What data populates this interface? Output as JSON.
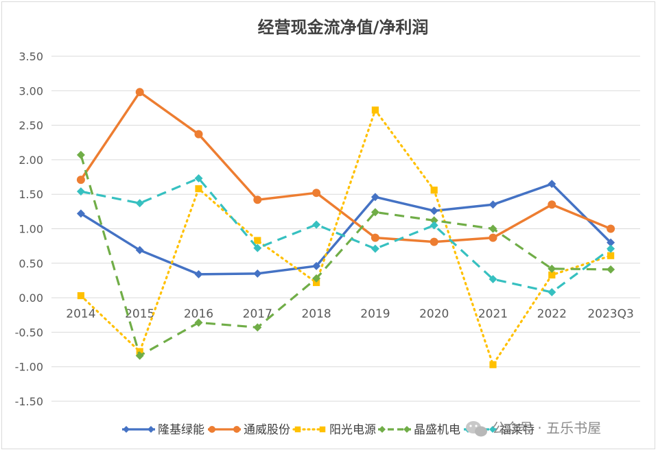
{
  "chart_data": {
    "type": "line",
    "title": "经营现金流净值/净利润",
    "categories": [
      "2014",
      "2015",
      "2016",
      "2017",
      "2018",
      "2019",
      "2020",
      "2021",
      "2022",
      "2023Q3"
    ],
    "ylim": [
      -1.5,
      3.5
    ],
    "yticks": [
      "3.50",
      "3.00",
      "2.50",
      "2.00",
      "1.50",
      "1.00",
      "0.50",
      "0.00",
      "-0.50",
      "-1.00",
      "-1.50"
    ],
    "series": [
      {
        "name": "隆基绿能",
        "color": "#4472c4",
        "dash": "solid",
        "marker": "diamond",
        "values": [
          1.22,
          0.69,
          0.34,
          0.35,
          0.46,
          1.46,
          1.26,
          1.35,
          1.65,
          0.8
        ]
      },
      {
        "name": "通威股份",
        "color": "#ed7d31",
        "dash": "solid",
        "marker": "circle",
        "values": [
          1.71,
          2.98,
          2.37,
          1.42,
          1.52,
          0.87,
          0.81,
          0.87,
          1.35,
          1.0
        ]
      },
      {
        "name": "阳光电源",
        "color": "#ffc000",
        "dash": "dotted",
        "marker": "square",
        "values": [
          0.03,
          -0.78,
          1.58,
          0.83,
          0.22,
          2.72,
          1.56,
          -0.97,
          0.33,
          0.61
        ]
      },
      {
        "name": "晶盛机电",
        "color": "#70ad47",
        "dash": "dashed",
        "marker": "diamond",
        "values": [
          2.07,
          -0.84,
          -0.36,
          -0.43,
          0.28,
          1.24,
          1.12,
          1.0,
          0.42,
          0.41
        ]
      },
      {
        "name": "福莱特",
        "color": "#36c0c0",
        "dash": "dashed",
        "marker": "diamond",
        "values": [
          1.54,
          1.37,
          1.73,
          0.72,
          1.06,
          0.71,
          1.05,
          0.27,
          0.08,
          0.71
        ]
      }
    ],
    "legend_position": "bottom"
  },
  "watermark": {
    "text": "公众号 · 五乐书屋",
    "icon": "wechat-icon"
  }
}
